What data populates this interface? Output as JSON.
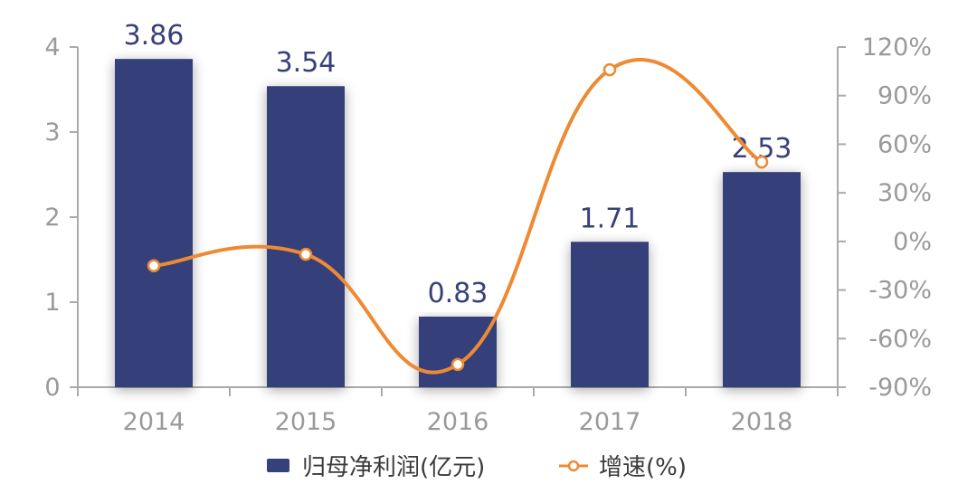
{
  "chart_data": {
    "type": "bar",
    "categories": [
      "2014",
      "2015",
      "2016",
      "2017",
      "2018"
    ],
    "series": [
      {
        "name": "归母净利润(亿元)",
        "type": "bar",
        "axis": "left",
        "values": [
          3.86,
          3.54,
          0.83,
          1.71,
          2.53
        ],
        "data_labels": [
          "3.86",
          "3.54",
          "0.83",
          "1.71",
          "2.53"
        ],
        "color": "#36407a"
      },
      {
        "name": "增速(%)",
        "type": "line",
        "axis": "right",
        "values": [
          -15,
          -8,
          -76,
          106,
          49
        ],
        "color": "#ee8a33"
      }
    ],
    "y_left": {
      "ylim": [
        0,
        4
      ],
      "ticks": [
        "0",
        "1",
        "2",
        "3",
        "4"
      ]
    },
    "y_right": {
      "ylim": [
        -90,
        120
      ],
      "ticks": [
        "-90%",
        "-60%",
        "-30%",
        "0%",
        "30%",
        "60%",
        "90%",
        "120%"
      ]
    },
    "legend": {
      "placement": "bottom-center"
    },
    "grid": false
  }
}
